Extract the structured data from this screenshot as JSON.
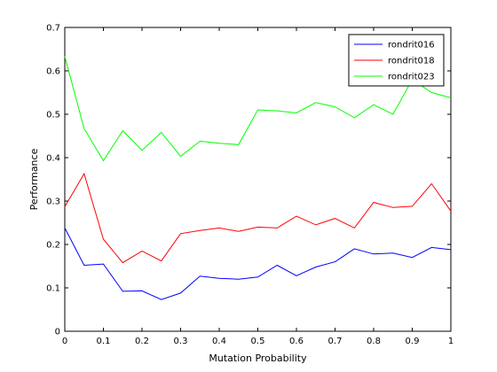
{
  "chart_data": {
    "type": "line",
    "xlabel": "Mutation Probability",
    "ylabel": "Performance",
    "xlim": [
      0,
      1
    ],
    "ylim": [
      0,
      0.7
    ],
    "xticks": [
      0,
      0.1,
      0.2,
      0.3,
      0.4,
      0.5,
      0.6,
      0.7,
      0.8,
      0.9,
      1
    ],
    "xtick_labels": [
      "0",
      "0.1",
      "0.2",
      "0.3",
      "0.4",
      "0.5",
      "0.6",
      "0.7",
      "0.8",
      "0.9",
      "1"
    ],
    "yticks": [
      0,
      0.1,
      0.2,
      0.3,
      0.4,
      0.5,
      0.6,
      0.7
    ],
    "ytick_labels": [
      "0",
      "0.1",
      "0.2",
      "0.3",
      "0.4",
      "0.5",
      "0.6",
      "0.7"
    ],
    "grid": false,
    "legend_position": "top-right",
    "x": [
      0,
      0.05,
      0.1,
      0.15,
      0.2,
      0.25,
      0.3,
      0.35,
      0.4,
      0.45,
      0.5,
      0.55,
      0.6,
      0.65,
      0.7,
      0.75,
      0.8,
      0.85,
      0.9,
      0.95,
      1
    ],
    "series": [
      {
        "name": "rondrit016",
        "color": "#0000ff",
        "values": [
          0.238,
          0.152,
          0.155,
          0.092,
          0.093,
          0.073,
          0.088,
          0.127,
          0.122,
          0.12,
          0.125,
          0.152,
          0.128,
          0.148,
          0.16,
          0.19,
          0.178,
          0.18,
          0.17,
          0.193,
          0.188
        ]
      },
      {
        "name": "rondrit018",
        "color": "#ff0000",
        "values": [
          0.287,
          0.363,
          0.212,
          0.158,
          0.185,
          0.162,
          0.225,
          0.232,
          0.238,
          0.23,
          0.24,
          0.238,
          0.265,
          0.245,
          0.26,
          0.238,
          0.297,
          0.285,
          0.288,
          0.34,
          0.277
        ]
      },
      {
        "name": "rondrit023",
        "color": "#00ff00",
        "values": [
          0.633,
          0.467,
          0.393,
          0.462,
          0.417,
          0.458,
          0.403,
          0.438,
          0.433,
          0.43,
          0.51,
          0.508,
          0.503,
          0.527,
          0.517,
          0.492,
          0.522,
          0.5,
          0.58,
          0.55,
          0.538
        ]
      }
    ]
  }
}
